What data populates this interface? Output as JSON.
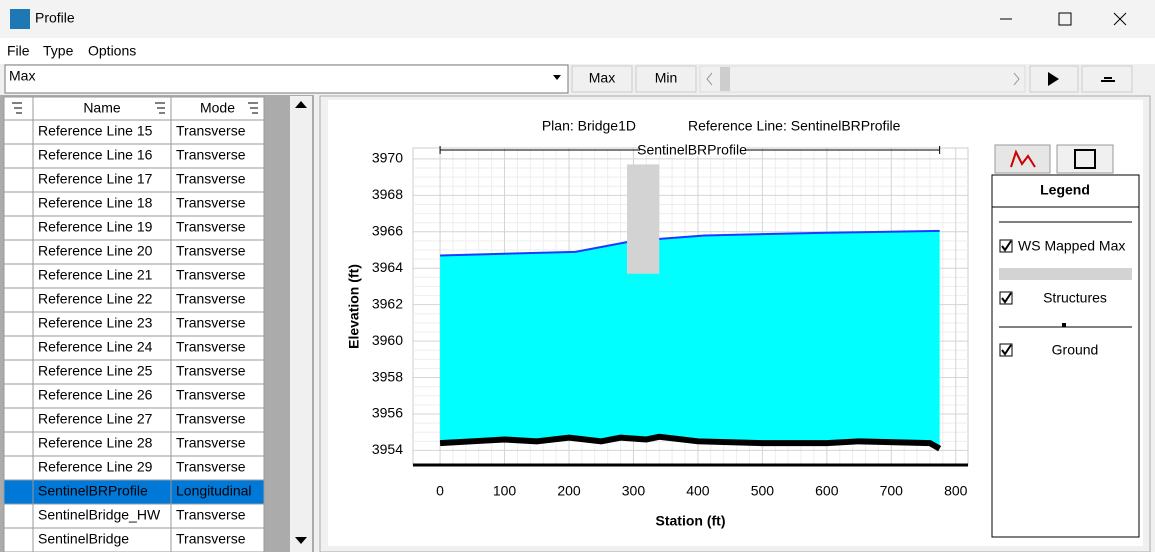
{
  "window": {
    "title": "Profile"
  },
  "menu": [
    "File",
    "Type",
    "Options"
  ],
  "toolbar": {
    "dropdown": "Max",
    "buttons": [
      "Max",
      "Min"
    ]
  },
  "table": {
    "headers": [
      "Name",
      "Mode"
    ],
    "rows": [
      [
        "Reference Line 15",
        "Transverse"
      ],
      [
        "Reference Line 16",
        "Transverse"
      ],
      [
        "Reference Line 17",
        "Transverse"
      ],
      [
        "Reference Line 18",
        "Transverse"
      ],
      [
        "Reference Line 19",
        "Transverse"
      ],
      [
        "Reference Line 20",
        "Transverse"
      ],
      [
        "Reference Line 21",
        "Transverse"
      ],
      [
        "Reference Line 22",
        "Transverse"
      ],
      [
        "Reference Line 23",
        "Transverse"
      ],
      [
        "Reference Line 24",
        "Transverse"
      ],
      [
        "Reference Line 25",
        "Transverse"
      ],
      [
        "Reference Line 26",
        "Transverse"
      ],
      [
        "Reference Line 27",
        "Transverse"
      ],
      [
        "Reference Line 28",
        "Transverse"
      ],
      [
        "Reference Line 29",
        "Transverse"
      ],
      [
        "SentinelBRProfile",
        "Longitudinal"
      ],
      [
        "SentinelBridge_HW",
        "Transverse"
      ],
      [
        "SentinelBridge",
        "Transverse"
      ]
    ],
    "selected_row": 15
  },
  "chart_data": {
    "type": "profile",
    "title": "Plan: Bridge1D",
    "subtitle": "Reference Line: SentinelBRProfile",
    "annotation": "SentinelBRProfile",
    "x_label": "Station (ft)",
    "y_label": "Elevation (ft)",
    "xlim": [
      -42,
      819
    ],
    "xticks": [
      0,
      100,
      200,
      300,
      400,
      500,
      600,
      700,
      800
    ],
    "ylim": [
      3953.2,
      3970.6
    ],
    "yticks": [
      3954,
      3956,
      3958,
      3960,
      3962,
      3964,
      3966,
      3968,
      3970
    ],
    "grid": true,
    "legend_title": "Legend",
    "series": [
      {
        "name": "WS Mapped Max",
        "style": "water",
        "color": "#1a3cff",
        "fill": "#00ffff",
        "x": [
          0,
          210,
          300,
          410,
          600,
          775
        ],
        "values": [
          3964.7,
          3964.9,
          3965.5,
          3965.8,
          3965.95,
          3966.05
        ]
      },
      {
        "name": "Structures",
        "style": "block",
        "color": "#d3d3d3",
        "x": [
          290,
          340
        ],
        "values": [
          3963.7,
          3969.7
        ]
      },
      {
        "name": "Ground",
        "style": "line",
        "color": "#000000",
        "x": [
          0,
          50,
          100,
          150,
          200,
          250,
          280,
          320,
          340,
          400,
          500,
          600,
          650,
          760,
          775
        ],
        "values": [
          3954.4,
          3954.5,
          3954.6,
          3954.5,
          3954.7,
          3954.5,
          3954.7,
          3954.6,
          3954.75,
          3954.5,
          3954.4,
          3954.4,
          3954.5,
          3954.4,
          3954.1
        ]
      }
    ]
  }
}
